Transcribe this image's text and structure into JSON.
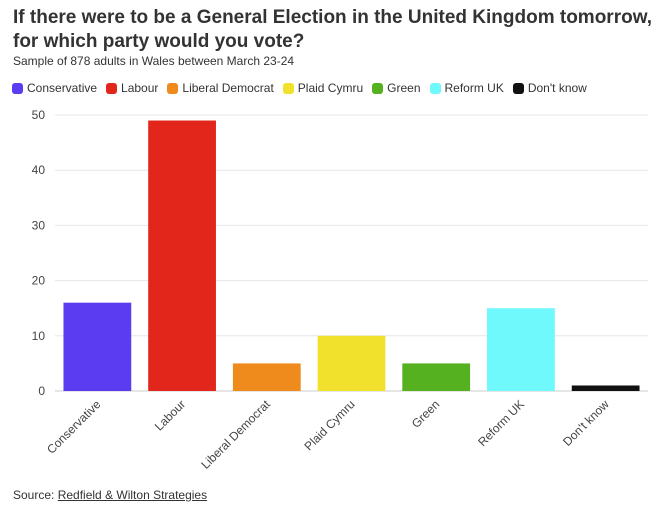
{
  "title": "If there were to be a General Election in the United Kingdom tomorrow, for which party would you vote?",
  "subtitle": "Sample of 878 adults in Wales between March 23-24",
  "source": {
    "prefix": "Source: ",
    "link_text": "Redfield & Wilton Strategies"
  },
  "chart_data": {
    "type": "bar",
    "categories": [
      "Conservative",
      "Labour",
      "Liberal Democrat",
      "Plaid Cymru",
      "Green",
      "Reform UK",
      "Don't know"
    ],
    "values": [
      16,
      49,
      5,
      10,
      5,
      15,
      1
    ],
    "colors": [
      "#5b3cf0",
      "#e3261b",
      "#ef8a1c",
      "#f1e12d",
      "#55b120",
      "#6ff9fc",
      "#111111"
    ],
    "ylim": [
      0,
      50
    ],
    "yticks": [
      0,
      10,
      20,
      30,
      40,
      50
    ],
    "legend_position": "top-left",
    "grid": true
  }
}
